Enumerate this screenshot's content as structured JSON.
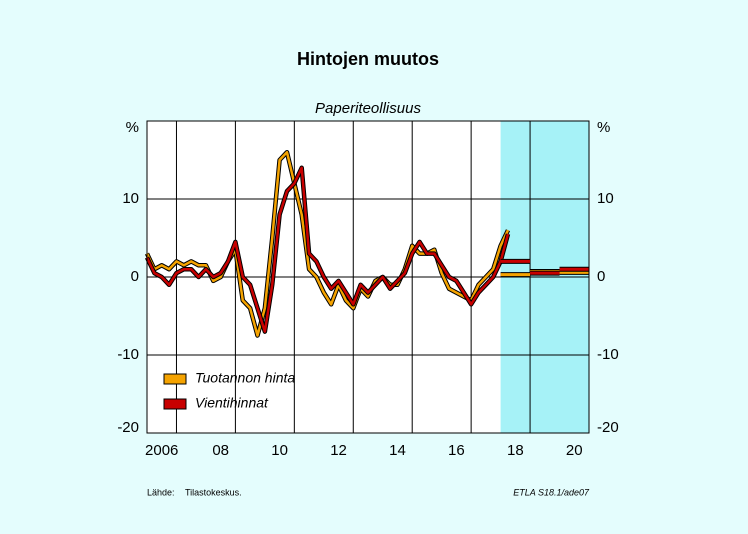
{
  "chart_data": {
    "type": "line",
    "title": "Hintojen muutos",
    "subtitle": "Paperiteollisuus",
    "source_label": "Lähde:",
    "source": "Tilastokeskus.",
    "code": "ETLA S18.1/ade07",
    "xlim": [
      2006,
      2021
    ],
    "ylim": [
      -20,
      20
    ],
    "yticks": [
      -20,
      -10,
      0,
      10,
      {
        "value": 20,
        "label": "%"
      }
    ],
    "xticks": [
      {
        "value": 2006.5,
        "label": "2006"
      },
      {
        "value": 2008.5,
        "label": "08"
      },
      {
        "value": 2010.5,
        "label": "10"
      },
      {
        "value": 2012.5,
        "label": "12"
      },
      {
        "value": 2014.5,
        "label": "14"
      },
      {
        "value": 2016.5,
        "label": "16"
      },
      {
        "value": 2018.5,
        "label": "18"
      },
      {
        "value": 2020.5,
        "label": "20"
      }
    ],
    "xgrid": [
      2007,
      2009,
      2011,
      2013,
      2015,
      2017,
      2019
    ],
    "grid": true,
    "forecast_span": [
      2018,
      2021
    ],
    "forecast_color": "#a6f2f7",
    "forecast_edges": [
      2018,
      2019,
      2020,
      2021
    ],
    "legend": "lower-left",
    "x": [
      2006.0,
      2006.25,
      2006.5,
      2006.75,
      2007.0,
      2007.25,
      2007.5,
      2007.75,
      2008.0,
      2008.25,
      2008.5,
      2008.75,
      2009.0,
      2009.25,
      2009.5,
      2009.75,
      2010.0,
      2010.25,
      2010.5,
      2010.75,
      2011.0,
      2011.25,
      2011.5,
      2011.75,
      2012.0,
      2012.25,
      2012.5,
      2012.75,
      2013.0,
      2013.25,
      2013.5,
      2013.75,
      2014.0,
      2014.25,
      2014.5,
      2014.75,
      2015.0,
      2015.25,
      2015.5,
      2015.75,
      2016.0,
      2016.25,
      2016.5,
      2016.75,
      2017.0,
      2017.25,
      2017.5,
      2017.75,
      2018.0,
      2018.25
    ],
    "series": [
      {
        "name": "Tuotannon hinta",
        "color": "#f5a300",
        "values": [
          3,
          1,
          1.5,
          1,
          2,
          1.5,
          2,
          1.5,
          1.5,
          -0.5,
          0,
          2,
          3.5,
          -3,
          -4,
          -7.5,
          -4,
          5,
          15,
          16,
          12,
          8,
          1,
          0,
          -2,
          -3.5,
          -1,
          -3,
          -4,
          -1.5,
          -2.5,
          -0.5,
          0,
          -1,
          -1,
          1,
          4,
          3,
          3,
          3.5,
          0.5,
          -1.5,
          -2,
          -2.5,
          -3,
          -1,
          0,
          1,
          4,
          6
        ],
        "forecast_values": [
          0.3,
          0.7,
          0.6
        ]
      },
      {
        "name": "Vientihinnat",
        "color": "#c80000",
        "values": [
          2.5,
          0.5,
          0,
          -1,
          0.5,
          1,
          1,
          0,
          1,
          0,
          0.5,
          2,
          4.5,
          0,
          -1,
          -4,
          -7,
          -1,
          8,
          11,
          12,
          14,
          3,
          2,
          0,
          -1.5,
          -0.5,
          -2,
          -3.5,
          -1,
          -2,
          -1,
          0,
          -1.5,
          -0.5,
          0.5,
          3,
          4.5,
          3,
          3,
          1.5,
          0,
          -0.5,
          -2,
          -3.5,
          -2,
          -1,
          0,
          2,
          5.5
        ],
        "forecast_values": [
          2.0,
          0.5,
          1.0
        ]
      }
    ]
  }
}
